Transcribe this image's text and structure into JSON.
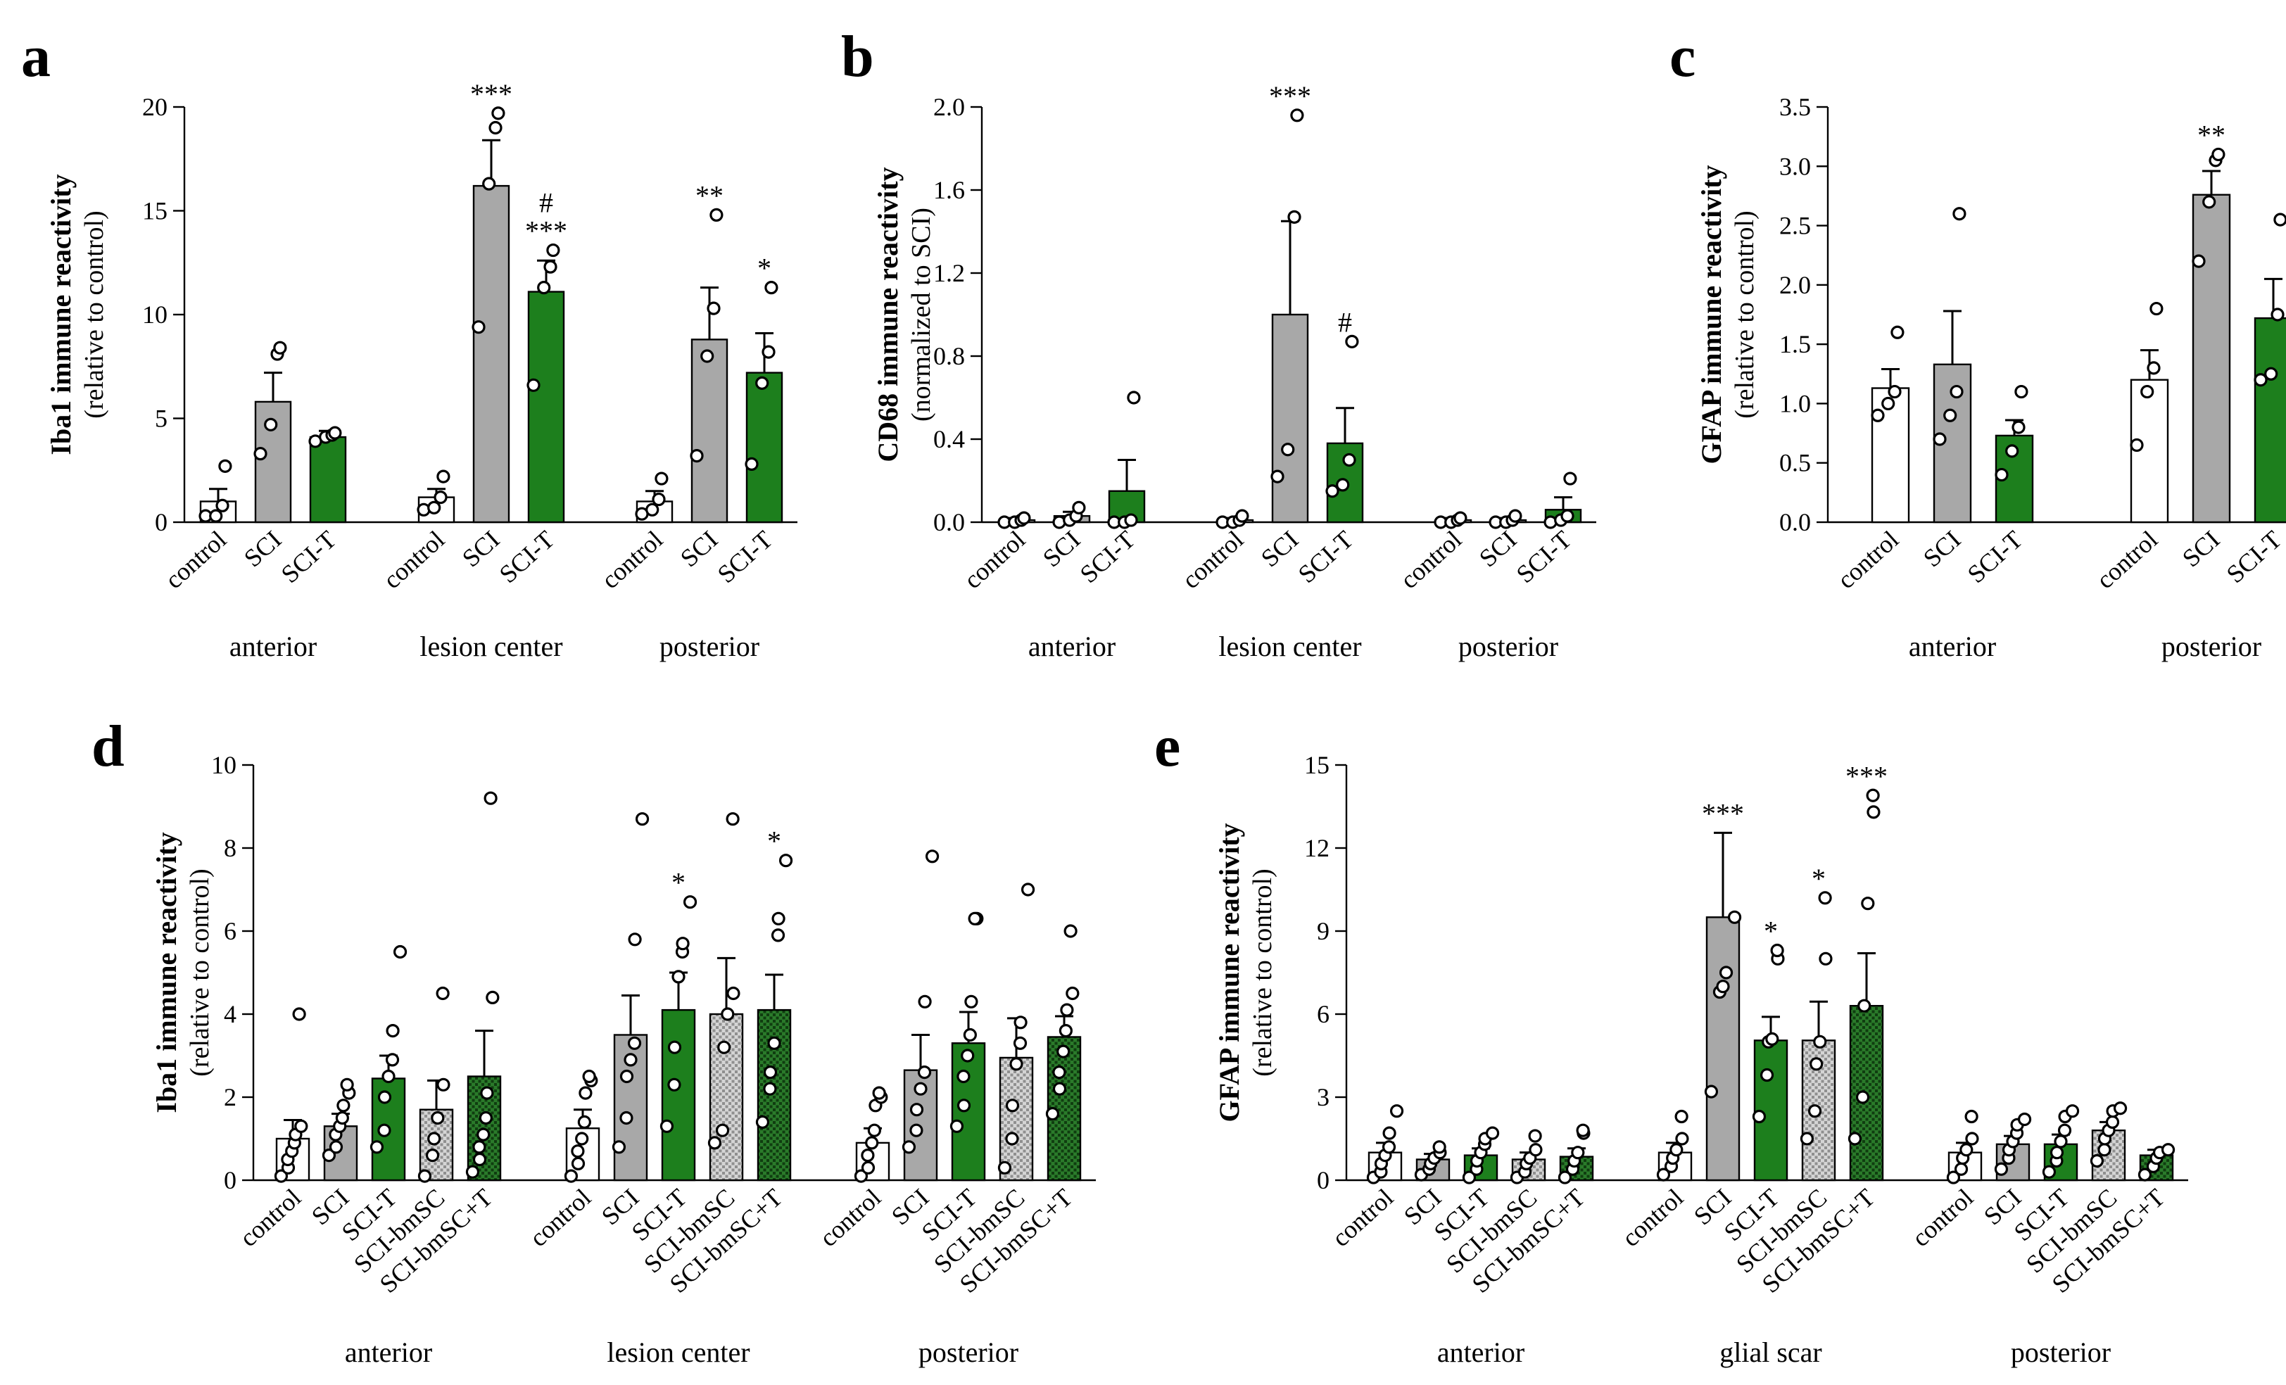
{
  "colors": {
    "white": "#ffffff",
    "grey": "#a8a8a8",
    "green": "#1d7f1d",
    "hatch": "#bdbdbd",
    "darkgreen": "#1f5f1f"
  },
  "chart_data": [
    {
      "panel": "a",
      "type": "bar",
      "ylabel": "Iba1 immune reactivity",
      "ylabel_sub": "(relative to control)",
      "ylim": [
        0,
        20
      ],
      "yticks": [
        "0",
        "5",
        "10",
        "15",
        "20"
      ],
      "groups": [
        "anterior",
        "lesion center",
        "posterior"
      ],
      "categories": [
        "control",
        "SCI",
        "SCI-T"
      ],
      "bars": [
        {
          "group": 0,
          "cat": "control",
          "fill": "white",
          "value": 1.0,
          "err": 0.6,
          "points": [
            0.3,
            0.3,
            0.8,
            2.7
          ],
          "sig": []
        },
        {
          "group": 0,
          "cat": "SCI",
          "fill": "grey",
          "value": 5.8,
          "err": 1.4,
          "points": [
            3.3,
            4.7,
            8.1,
            8.4
          ],
          "sig": []
        },
        {
          "group": 0,
          "cat": "SCI-T",
          "fill": "green",
          "value": 4.1,
          "err": 0.3,
          "points": [
            3.9,
            4.1,
            4.2,
            4.3
          ],
          "sig": []
        },
        {
          "group": 1,
          "cat": "control",
          "fill": "white",
          "value": 1.2,
          "err": 0.4,
          "points": [
            0.6,
            0.7,
            1.2,
            2.2
          ],
          "sig": []
        },
        {
          "group": 1,
          "cat": "SCI",
          "fill": "grey",
          "value": 16.2,
          "err": 2.2,
          "points": [
            9.4,
            16.3,
            19.0,
            19.7
          ],
          "sig": [
            "***"
          ]
        },
        {
          "group": 1,
          "cat": "SCI-T",
          "fill": "green",
          "value": 11.1,
          "err": 1.5,
          "points": [
            6.6,
            11.3,
            12.3,
            13.1
          ],
          "sig": [
            "***",
            "#"
          ]
        },
        {
          "group": 2,
          "cat": "control",
          "fill": "white",
          "value": 1.0,
          "err": 0.5,
          "points": [
            0.4,
            0.6,
            1.1,
            2.1
          ],
          "sig": []
        },
        {
          "group": 2,
          "cat": "SCI",
          "fill": "grey",
          "value": 8.8,
          "err": 2.5,
          "points": [
            3.2,
            8.0,
            10.3,
            14.8
          ],
          "sig": [
            "**"
          ]
        },
        {
          "group": 2,
          "cat": "SCI-T",
          "fill": "green",
          "value": 7.2,
          "err": 1.9,
          "points": [
            2.8,
            6.7,
            8.2,
            11.3
          ],
          "sig": [
            "*"
          ]
        }
      ]
    },
    {
      "panel": "b",
      "type": "bar",
      "ylabel": "CD68 immune reactivity",
      "ylabel_sub": "(normalized to SCI)",
      "ylim": [
        0,
        2.0
      ],
      "yticks": [
        "0.0",
        "0.4",
        "0.8",
        "1.2",
        "1.6",
        "2.0"
      ],
      "groups": [
        "anterior",
        "lesion center",
        "posterior"
      ],
      "categories": [
        "control",
        "SCI",
        "SCI-T"
      ],
      "bars": [
        {
          "group": 0,
          "cat": "control",
          "fill": "white",
          "value": 0.01,
          "err": 0.01,
          "points": [
            0.0,
            0.0,
            0.01,
            0.02
          ],
          "sig": []
        },
        {
          "group": 0,
          "cat": "SCI",
          "fill": "grey",
          "value": 0.03,
          "err": 0.02,
          "points": [
            0.0,
            0.01,
            0.03,
            0.07
          ],
          "sig": []
        },
        {
          "group": 0,
          "cat": "SCI-T",
          "fill": "green",
          "value": 0.15,
          "err": 0.15,
          "points": [
            0.0,
            0.0,
            0.01,
            0.6
          ],
          "sig": []
        },
        {
          "group": 1,
          "cat": "control",
          "fill": "white",
          "value": 0.01,
          "err": 0.01,
          "points": [
            0.0,
            0.0,
            0.01,
            0.03
          ],
          "sig": []
        },
        {
          "group": 1,
          "cat": "SCI",
          "fill": "grey",
          "value": 1.0,
          "err": 0.45,
          "points": [
            0.22,
            0.35,
            1.47,
            1.96
          ],
          "sig": [
            "***"
          ]
        },
        {
          "group": 1,
          "cat": "SCI-T",
          "fill": "green",
          "value": 0.38,
          "err": 0.17,
          "points": [
            0.15,
            0.18,
            0.3,
            0.87
          ],
          "sig": [
            "#"
          ]
        },
        {
          "group": 2,
          "cat": "control",
          "fill": "white",
          "value": 0.01,
          "err": 0.01,
          "points": [
            0.0,
            0.0,
            0.01,
            0.02
          ],
          "sig": []
        },
        {
          "group": 2,
          "cat": "SCI",
          "fill": "grey",
          "value": 0.01,
          "err": 0.01,
          "points": [
            0.0,
            0.0,
            0.01,
            0.03
          ],
          "sig": []
        },
        {
          "group": 2,
          "cat": "SCI-T",
          "fill": "green",
          "value": 0.06,
          "err": 0.06,
          "points": [
            0.0,
            0.01,
            0.03,
            0.21
          ],
          "sig": []
        }
      ]
    },
    {
      "panel": "c",
      "type": "bar",
      "ylabel": "GFAP immune reactivity",
      "ylabel_sub": "(relative to control)",
      "ylim": [
        0,
        3.5
      ],
      "yticks": [
        "0.0",
        "0.5",
        "1.0",
        "1.5",
        "2.0",
        "2.5",
        "3.0",
        "3.5"
      ],
      "groups": [
        "anterior",
        "posterior"
      ],
      "categories": [
        "control",
        "SCI",
        "SCI-T"
      ],
      "bars": [
        {
          "group": 0,
          "cat": "control",
          "fill": "white",
          "value": 1.13,
          "err": 0.16,
          "points": [
            0.9,
            1.0,
            1.1,
            1.6
          ],
          "sig": []
        },
        {
          "group": 0,
          "cat": "SCI",
          "fill": "grey",
          "value": 1.33,
          "err": 0.45,
          "points": [
            0.7,
            0.9,
            1.1,
            2.6
          ],
          "sig": []
        },
        {
          "group": 0,
          "cat": "SCI-T",
          "fill": "green",
          "value": 0.73,
          "err": 0.13,
          "points": [
            0.4,
            0.6,
            0.8,
            1.1
          ],
          "sig": []
        },
        {
          "group": 1,
          "cat": "control",
          "fill": "white",
          "value": 1.2,
          "err": 0.25,
          "points": [
            0.65,
            1.1,
            1.3,
            1.8
          ],
          "sig": []
        },
        {
          "group": 1,
          "cat": "SCI",
          "fill": "grey",
          "value": 2.76,
          "err": 0.2,
          "points": [
            2.2,
            2.7,
            3.05,
            3.1
          ],
          "sig": [
            "**"
          ]
        },
        {
          "group": 1,
          "cat": "SCI-T",
          "fill": "green",
          "value": 1.72,
          "err": 0.33,
          "points": [
            1.2,
            1.25,
            1.75,
            2.55
          ],
          "sig": []
        }
      ]
    },
    {
      "panel": "d",
      "type": "bar",
      "ylabel": "Iba1 immune reactivity",
      "ylabel_sub": "(relative to control)",
      "ylim": [
        0,
        10
      ],
      "yticks": [
        "0",
        "2",
        "4",
        "6",
        "8",
        "10"
      ],
      "groups": [
        "anterior",
        "lesion center",
        "posterior"
      ],
      "categories": [
        "control",
        "SCI",
        "SCI-T",
        "SCI-bmSC",
        "SCI-bmSC+T"
      ],
      "bars": [
        {
          "group": 0,
          "cat": "control",
          "fill": "white",
          "value": 1.0,
          "err": 0.45,
          "points": [
            0.1,
            0.3,
            0.5,
            0.7,
            0.9,
            1.1,
            1.3,
            4.0
          ],
          "sig": []
        },
        {
          "group": 0,
          "cat": "SCI",
          "fill": "grey",
          "value": 1.3,
          "err": 0.3,
          "points": [
            0.6,
            0.8,
            1.1,
            1.3,
            1.5,
            1.8,
            2.1,
            2.3
          ],
          "sig": []
        },
        {
          "group": 0,
          "cat": "SCI-T",
          "fill": "green",
          "value": 2.45,
          "err": 0.55,
          "points": [
            0.8,
            1.2,
            2.0,
            2.5,
            2.9,
            3.6,
            5.5
          ],
          "sig": []
        },
        {
          "group": 0,
          "cat": "SCI-bmSC",
          "fill": "hatch",
          "value": 1.7,
          "err": 0.7,
          "points": [
            0.1,
            0.6,
            1.0,
            1.5,
            2.3,
            4.5
          ],
          "sig": []
        },
        {
          "group": 0,
          "cat": "SCI-bmSC+T",
          "fill": "darkgreen",
          "value": 2.5,
          "err": 1.1,
          "points": [
            0.2,
            0.5,
            0.8,
            1.1,
            1.5,
            2.1,
            4.4,
            9.2
          ],
          "sig": []
        },
        {
          "group": 1,
          "cat": "control",
          "fill": "white",
          "value": 1.25,
          "err": 0.45,
          "points": [
            0.1,
            0.4,
            0.7,
            1.0,
            1.4,
            2.1,
            2.4,
            2.5
          ],
          "sig": []
        },
        {
          "group": 1,
          "cat": "SCI",
          "fill": "grey",
          "value": 3.5,
          "err": 0.95,
          "points": [
            0.8,
            1.5,
            2.5,
            2.9,
            3.3,
            5.8,
            8.7
          ],
          "sig": []
        },
        {
          "group": 1,
          "cat": "SCI-T",
          "fill": "green",
          "value": 4.1,
          "err": 0.9,
          "points": [
            1.3,
            2.3,
            3.2,
            4.9,
            5.5,
            5.7,
            6.7
          ],
          "sig": [
            "*"
          ]
        },
        {
          "group": 1,
          "cat": "SCI-bmSC",
          "fill": "hatch",
          "value": 4.0,
          "err": 1.35,
          "points": [
            0.9,
            1.2,
            3.2,
            4.0,
            4.5,
            8.7
          ],
          "sig": []
        },
        {
          "group": 1,
          "cat": "SCI-bmSC+T",
          "fill": "darkgreen",
          "value": 4.1,
          "err": 0.85,
          "points": [
            1.4,
            2.2,
            2.6,
            3.3,
            5.9,
            6.3,
            7.7
          ],
          "sig": [
            "*"
          ]
        },
        {
          "group": 2,
          "cat": "control",
          "fill": "white",
          "value": 0.9,
          "err": 0.35,
          "points": [
            0.1,
            0.3,
            0.6,
            0.9,
            1.2,
            1.8,
            2.0,
            2.1
          ],
          "sig": []
        },
        {
          "group": 2,
          "cat": "SCI",
          "fill": "grey",
          "value": 2.65,
          "err": 0.85,
          "points": [
            0.8,
            1.2,
            1.7,
            2.2,
            2.6,
            4.3,
            7.8
          ],
          "sig": []
        },
        {
          "group": 2,
          "cat": "SCI-T",
          "fill": "green",
          "value": 3.3,
          "err": 0.75,
          "points": [
            1.3,
            1.8,
            2.5,
            3.0,
            3.5,
            4.3,
            6.3,
            6.3
          ],
          "sig": []
        },
        {
          "group": 2,
          "cat": "SCI-bmSC",
          "fill": "hatch",
          "value": 2.95,
          "err": 0.95,
          "points": [
            0.3,
            1.0,
            1.8,
            2.8,
            3.3,
            3.8,
            7.0
          ],
          "sig": []
        },
        {
          "group": 2,
          "cat": "SCI-bmSC+T",
          "fill": "darkgreen",
          "value": 3.45,
          "err": 0.5,
          "points": [
            1.6,
            2.2,
            2.6,
            3.1,
            3.6,
            4.1,
            4.5,
            6.0
          ],
          "sig": []
        }
      ]
    },
    {
      "panel": "e",
      "type": "bar",
      "ylabel": "GFAP immune reactivity",
      "ylabel_sub": "(relative to control)",
      "ylim": [
        0,
        15
      ],
      "yticks": [
        "0",
        "3",
        "6",
        "9",
        "12",
        "15"
      ],
      "groups": [
        "anterior",
        "glial scar",
        "posterior"
      ],
      "categories": [
        "control",
        "SCI",
        "SCI-T",
        "SCI-bmSC",
        "SCI-bmSC+T"
      ],
      "bars": [
        {
          "group": 0,
          "cat": "control",
          "fill": "white",
          "value": 1.0,
          "err": 0.35,
          "points": [
            0.1,
            0.3,
            0.6,
            0.9,
            1.2,
            1.7,
            2.5
          ],
          "sig": []
        },
        {
          "group": 0,
          "cat": "SCI",
          "fill": "grey",
          "value": 0.75,
          "err": 0.2,
          "points": [
            0.2,
            0.4,
            0.6,
            0.8,
            1.0,
            1.2
          ],
          "sig": []
        },
        {
          "group": 0,
          "cat": "SCI-T",
          "fill": "green",
          "value": 0.9,
          "err": 0.25,
          "points": [
            0.1,
            0.4,
            0.7,
            1.0,
            1.3,
            1.5,
            1.7
          ],
          "sig": []
        },
        {
          "group": 0,
          "cat": "SCI-bmSC",
          "fill": "hatch",
          "value": 0.75,
          "err": 0.25,
          "points": [
            0.1,
            0.3,
            0.6,
            0.8,
            1.1,
            1.6
          ],
          "sig": []
        },
        {
          "group": 0,
          "cat": "SCI-bmSC+T",
          "fill": "darkgreen",
          "value": 0.85,
          "err": 0.3,
          "points": [
            0.1,
            0.4,
            0.7,
            1.0,
            1.7,
            1.8
          ],
          "sig": []
        },
        {
          "group": 1,
          "cat": "control",
          "fill": "white",
          "value": 1.0,
          "err": 0.35,
          "points": [
            0.2,
            0.5,
            0.8,
            1.1,
            1.5,
            2.3
          ],
          "sig": []
        },
        {
          "group": 1,
          "cat": "SCI",
          "fill": "grey",
          "value": 9.5,
          "err": 3.05,
          "points": [
            3.2,
            6.8,
            7.0,
            7.5,
            9.5
          ],
          "sig": [
            "***"
          ]
        },
        {
          "group": 1,
          "cat": "SCI-T",
          "fill": "green",
          "value": 5.05,
          "err": 0.85,
          "points": [
            2.3,
            3.8,
            5.0,
            5.1,
            8.0,
            8.3
          ],
          "sig": [
            "*"
          ]
        },
        {
          "group": 1,
          "cat": "SCI-bmSC",
          "fill": "hatch",
          "value": 5.05,
          "err": 1.4,
          "points": [
            1.5,
            2.5,
            4.2,
            5.0,
            8.0,
            10.2
          ],
          "sig": [
            "*"
          ]
        },
        {
          "group": 1,
          "cat": "SCI-bmSC+T",
          "fill": "darkgreen",
          "value": 6.3,
          "err": 1.9,
          "points": [
            1.5,
            3.0,
            6.3,
            10.0,
            13.3,
            13.9
          ],
          "sig": [
            "***"
          ]
        },
        {
          "group": 2,
          "cat": "control",
          "fill": "white",
          "value": 1.0,
          "err": 0.35,
          "points": [
            0.1,
            0.4,
            0.8,
            1.1,
            1.5,
            2.3
          ],
          "sig": []
        },
        {
          "group": 2,
          "cat": "SCI",
          "fill": "grey",
          "value": 1.3,
          "err": 0.3,
          "points": [
            0.4,
            0.8,
            1.1,
            1.4,
            1.7,
            2.0,
            2.2
          ],
          "sig": []
        },
        {
          "group": 2,
          "cat": "SCI-T",
          "fill": "green",
          "value": 1.3,
          "err": 0.35,
          "points": [
            0.3,
            0.7,
            1.0,
            1.4,
            1.8,
            2.3,
            2.5
          ],
          "sig": []
        },
        {
          "group": 2,
          "cat": "SCI-bmSC",
          "fill": "hatch",
          "value": 1.8,
          "err": 0.3,
          "points": [
            0.7,
            1.1,
            1.5,
            1.8,
            2.1,
            2.5,
            2.6
          ],
          "sig": []
        },
        {
          "group": 2,
          "cat": "SCI-bmSC+T",
          "fill": "darkgreen",
          "value": 0.9,
          "err": 0.2,
          "points": [
            0.2,
            0.5,
            0.8,
            1.0,
            1.1
          ],
          "sig": []
        }
      ]
    }
  ]
}
